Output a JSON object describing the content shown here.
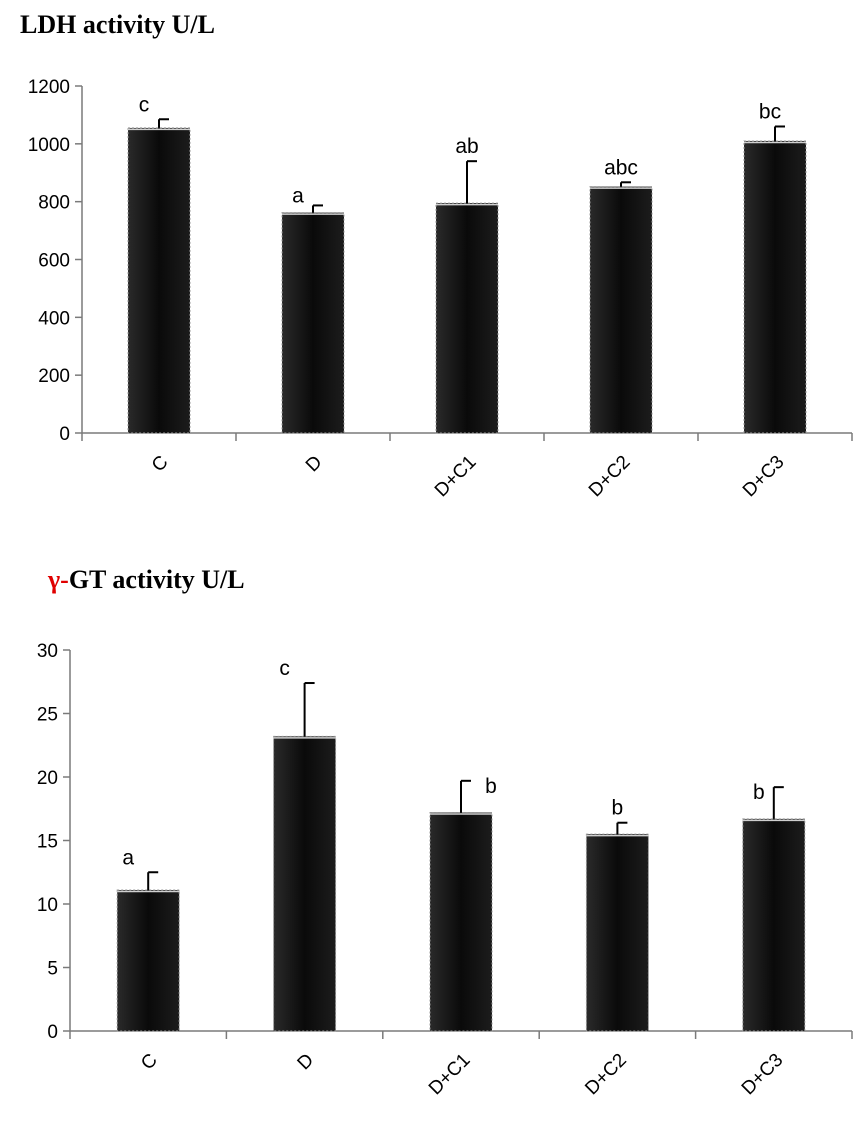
{
  "chart_data": [
    {
      "type": "bar",
      "title": "LDH activity U/L",
      "categories": [
        "C",
        "D",
        "D+C1",
        "D+C2",
        "D+C3"
      ],
      "values": [
        1055,
        762,
        795,
        852,
        1010
      ],
      "error": [
        30,
        25,
        145,
        15,
        50
      ],
      "significance": [
        "c",
        "a",
        "ab",
        "abc",
        "bc"
      ],
      "ylim": [
        0,
        1200
      ],
      "yticks": [
        0,
        200,
        400,
        600,
        800,
        1000,
        1200
      ],
      "xlabel": "",
      "ylabel": "",
      "grid": false,
      "bar_color": "#0a0a0a"
    },
    {
      "type": "bar",
      "title_prefix": "γ-",
      "title": "GT activity U/L",
      "categories": [
        "C",
        "D",
        "D+C1",
        "D+C2",
        "D+C3"
      ],
      "values": [
        11.1,
        23.2,
        17.2,
        15.5,
        16.7
      ],
      "error": [
        1.4,
        4.2,
        2.5,
        0.9,
        2.5
      ],
      "significance": [
        "a",
        "c",
        "b",
        "b",
        "b"
      ],
      "ylim": [
        0,
        30
      ],
      "yticks": [
        0,
        5,
        10,
        15,
        20,
        25,
        30
      ],
      "xlabel": "",
      "ylabel": "",
      "grid": false,
      "bar_color": "#0a0a0a",
      "title_prefix_color": "#e00000"
    }
  ]
}
